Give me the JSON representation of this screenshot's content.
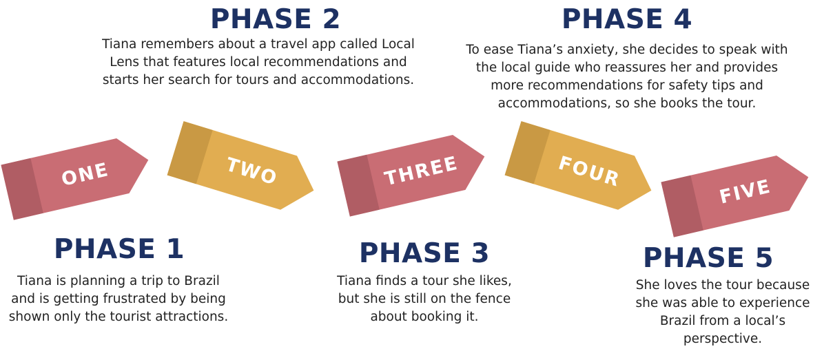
{
  "colors": {
    "title": "#1d3163",
    "text": "#222222",
    "pink_body": "#c96d74",
    "pink_cap": "#b05d64",
    "gold_body": "#e1ad51",
    "gold_cap": "#c99944"
  },
  "phases": [
    {
      "title": "PHASE 1",
      "description": "Tiana is planning a trip to Brazil and is getting frustrated by being shown only the tourist attractions.",
      "tag_label": "ONE",
      "tag_color": "pink"
    },
    {
      "title": "PHASE 2",
      "description": "Tiana remembers about a travel app called Local Lens that features local recommendations and starts her search for tours and accommodations.",
      "tag_label": "TWO",
      "tag_color": "gold"
    },
    {
      "title": "PHASE 3",
      "description": "Tiana finds a tour she likes, but she is still on the fence about booking it.",
      "tag_label": "THREE",
      "tag_color": "pink"
    },
    {
      "title": "PHASE 4",
      "description": "To ease Tiana’s anxiety, she decides to speak with the local guide who reassures her and provides more recommendations for safety tips and accommodations, so she books the tour.",
      "tag_label": "FOUR",
      "tag_color": "gold"
    },
    {
      "title": "PHASE 5",
      "description": "She loves the tour because she was able to experience Brazil from a local’s perspective.",
      "tag_label": "FIVE",
      "tag_color": "pink"
    }
  ]
}
